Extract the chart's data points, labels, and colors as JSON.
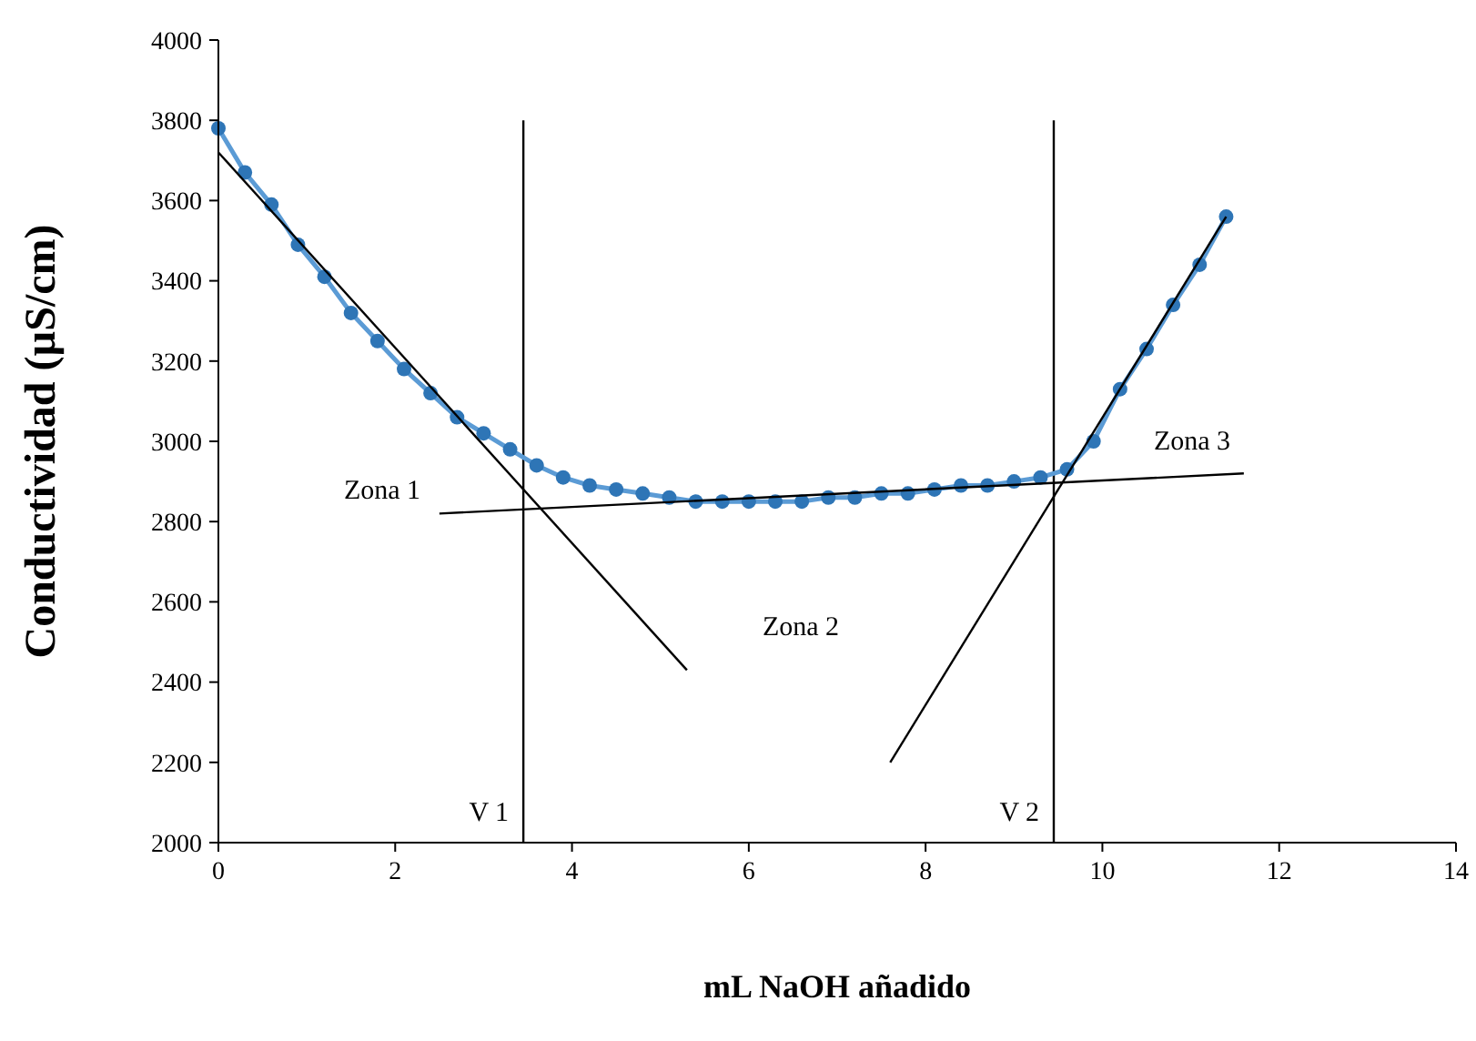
{
  "chart_data": {
    "type": "line",
    "xlabel": "mL NaOH añadido",
    "ylabel": "Conductividad (µS/cm)",
    "xlim": [
      0,
      14
    ],
    "ylim": [
      2000,
      4000
    ],
    "xticks": [
      0,
      2,
      4,
      6,
      8,
      10,
      12,
      14
    ],
    "yticks": [
      2000,
      2200,
      2400,
      2600,
      2800,
      3000,
      3200,
      3400,
      3600,
      3800,
      4000
    ],
    "grid": false,
    "series": [
      {
        "type": "line",
        "marker": "circle",
        "color": "#2e75b6",
        "x": [
          0,
          0.3,
          0.6,
          0.9,
          1.2,
          1.5,
          1.8,
          2.1,
          2.4,
          2.7,
          3.0,
          3.3,
          3.6,
          3.9,
          4.2,
          4.5,
          4.8,
          5.1,
          5.4,
          5.7,
          6.0,
          6.3,
          6.6,
          6.9,
          7.2,
          7.5,
          7.8,
          8.1,
          8.4,
          8.7,
          9.0,
          9.3,
          9.6,
          9.9,
          10.2,
          10.5,
          10.8,
          11.1,
          11.4
        ],
        "values": [
          3780,
          3670,
          3590,
          3490,
          3410,
          3320,
          3250,
          3180,
          3120,
          3060,
          3020,
          2980,
          2940,
          2910,
          2890,
          2880,
          2870,
          2860,
          2850,
          2850,
          2850,
          2850,
          2850,
          2860,
          2860,
          2870,
          2870,
          2880,
          2890,
          2890,
          2900,
          2910,
          2930,
          3000,
          3130,
          3230,
          3340,
          3440,
          3560
        ]
      },
      {
        "type": "line",
        "marker": "none",
        "color": "#000000",
        "x": [
          0,
          5.3
        ],
        "values": [
          3720,
          2430
        ]
      },
      {
        "type": "line",
        "marker": "none",
        "color": "#000000",
        "x": [
          2.5,
          11.6
        ],
        "values": [
          2820,
          2920
        ]
      },
      {
        "type": "line",
        "marker": "none",
        "color": "#000000",
        "x": [
          7.6,
          11.4
        ],
        "values": [
          2200,
          3560
        ]
      }
    ],
    "ref_lines": [
      {
        "axis": "x",
        "value": 3.45,
        "label": "V 1",
        "color": "#000000"
      },
      {
        "axis": "x",
        "value": 9.45,
        "label": "V 2",
        "color": "#000000"
      }
    ],
    "annotations": [
      "Zona 1",
      "Zona 2",
      "Zona 3"
    ]
  }
}
